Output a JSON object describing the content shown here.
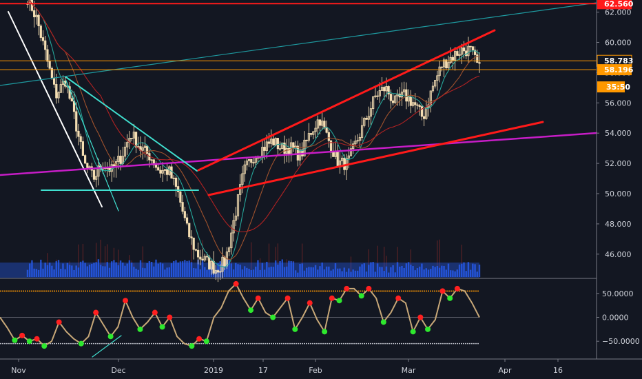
{
  "chart_data": [
    {
      "type": "line",
      "subtype": "candlestick-price-chart",
      "ylim": [
        44.5,
        63.0
      ],
      "yticks": [
        46,
        48,
        50,
        52,
        54,
        56,
        58,
        60,
        62
      ],
      "ytick_labels": [
        "46.000",
        "48.000",
        "50.000",
        "52.000",
        "54.000",
        "56.000",
        "58.000",
        "60.000",
        "62.000"
      ],
      "x_tick_labels": [
        "Nov",
        "Dec",
        "2019",
        "17",
        "Feb",
        "Mar",
        "Apr",
        "16"
      ],
      "price_path": [
        63.0,
        61.5,
        59.0,
        56.5,
        57.5,
        55.0,
        52.0,
        51.0,
        52.0,
        51.5,
        52.5,
        54.0,
        53.0,
        52.5,
        51.5,
        51.5,
        50.0,
        47.5,
        46.0,
        45.5,
        45.0,
        45.5,
        48.5,
        51.5,
        52.5,
        53.0,
        53.5,
        53.0,
        53.0,
        52.5,
        54.0,
        55.0,
        53.5,
        52.0,
        52.0,
        53.5,
        55.0,
        56.5,
        57.0,
        56.0,
        56.5,
        56.0,
        55.0,
        57.0,
        58.5,
        59.0,
        59.5,
        59.5,
        58.2
      ],
      "price_levels": [
        {
          "value": 62.56,
          "label": "62.560",
          "color": "#ff1a1a"
        },
        {
          "value": 58.783,
          "label": "58.783",
          "color": "#ff9800"
        },
        {
          "value": 58.196,
          "label": "58.196",
          "color": "#ff9800"
        }
      ],
      "countdown_label": "35:50",
      "grid": false,
      "colors": {
        "candle": "#f5deb3",
        "trendline_red": "#ff1a1a",
        "trendline_cyan": "#40e0d0",
        "trendline_magenta": "#c71dc7",
        "trendline_white": "#ffffff",
        "trendline_teal": "#1e9aa0",
        "volume": "#2962ff",
        "ma_fast": "#26a69a",
        "ma_mid": "#a0522d",
        "ma_slow": "#b22222"
      }
    },
    {
      "type": "line",
      "subtype": "oscillator",
      "ylim": [
        -75,
        70
      ],
      "yticks": [
        50,
        0,
        -50
      ],
      "ytick_labels": [
        "50.0000",
        "0.0000",
        "−50.0000"
      ],
      "levels": [
        55,
        -55
      ],
      "values": [
        0,
        -22,
        -48,
        -38,
        -50,
        -45,
        -60,
        -50,
        -10,
        -30,
        -45,
        -55,
        -40,
        10,
        -15,
        -40,
        -20,
        35,
        0,
        -25,
        -10,
        10,
        -20,
        0,
        -40,
        -55,
        -60,
        -45,
        -50,
        0,
        20,
        55,
        70,
        40,
        15,
        40,
        10,
        0,
        20,
        40,
        -25,
        0,
        30,
        -5,
        -30,
        40,
        35,
        60,
        60,
        45,
        60,
        40,
        -10,
        10,
        40,
        30,
        -30,
        0,
        -25,
        -5,
        55,
        40,
        60,
        55,
        30,
        0
      ],
      "colors": {
        "line": "#c8a878",
        "high_marker": "#ff2020",
        "low_marker": "#2ee82e",
        "level": "#ff9800"
      }
    }
  ]
}
